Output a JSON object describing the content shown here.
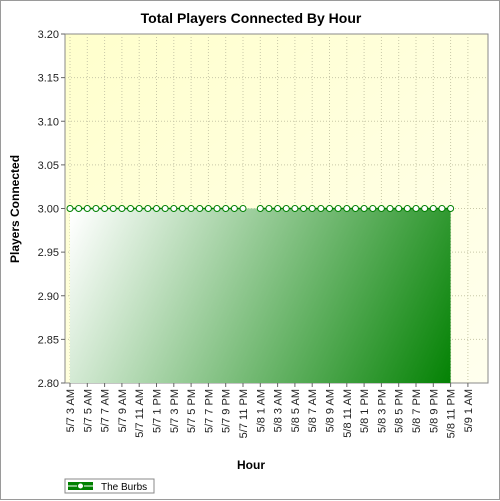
{
  "chart_data": {
    "type": "area",
    "title": "Total Players Connected By Hour",
    "xlabel": "Hour",
    "ylabel": "Players Connected",
    "ylim": [
      2.8,
      3.2
    ],
    "yticks": [
      "2.80",
      "2.85",
      "2.90",
      "2.95",
      "3.00",
      "3.05",
      "3.10",
      "3.15",
      "3.20"
    ],
    "xtick_labels": [
      "5/7 3 AM",
      "5/7 5 AM",
      "5/7 7 AM",
      "5/7 9 AM",
      "5/7 11 AM",
      "5/7 1 PM",
      "5/7 3 PM",
      "5/7 5 PM",
      "5/7 7 PM",
      "5/7 9 PM",
      "5/7 11 PM",
      "5/8 1 AM",
      "5/8 3 AM",
      "5/8 5 AM",
      "5/8 7 AM",
      "5/8 9 AM",
      "5/8 11 AM",
      "5/8 1 PM",
      "5/8 3 PM",
      "5/8 5 PM",
      "5/8 7 PM",
      "5/8 9 PM",
      "5/8 11 PM",
      "5/9 1 AM"
    ],
    "grid": true,
    "legend_position": "bottom-left",
    "series": [
      {
        "name": "The Burbs",
        "color": "#008000",
        "segments": [
          {
            "start": "5/7 3 AM",
            "values": [
              3,
              3,
              3,
              3,
              3,
              3,
              3,
              3,
              3,
              3,
              3,
              3,
              3,
              3,
              3,
              3,
              3,
              3,
              3,
              3,
              3
            ]
          },
          {
            "start": "5/8 1 AM",
            "values": [
              3,
              3,
              3,
              3,
              3,
              3,
              3,
              3,
              3,
              3,
              3,
              3,
              3,
              3,
              3,
              3,
              3,
              3,
              3,
              3,
              3,
              3,
              3
            ]
          }
        ]
      }
    ]
  }
}
